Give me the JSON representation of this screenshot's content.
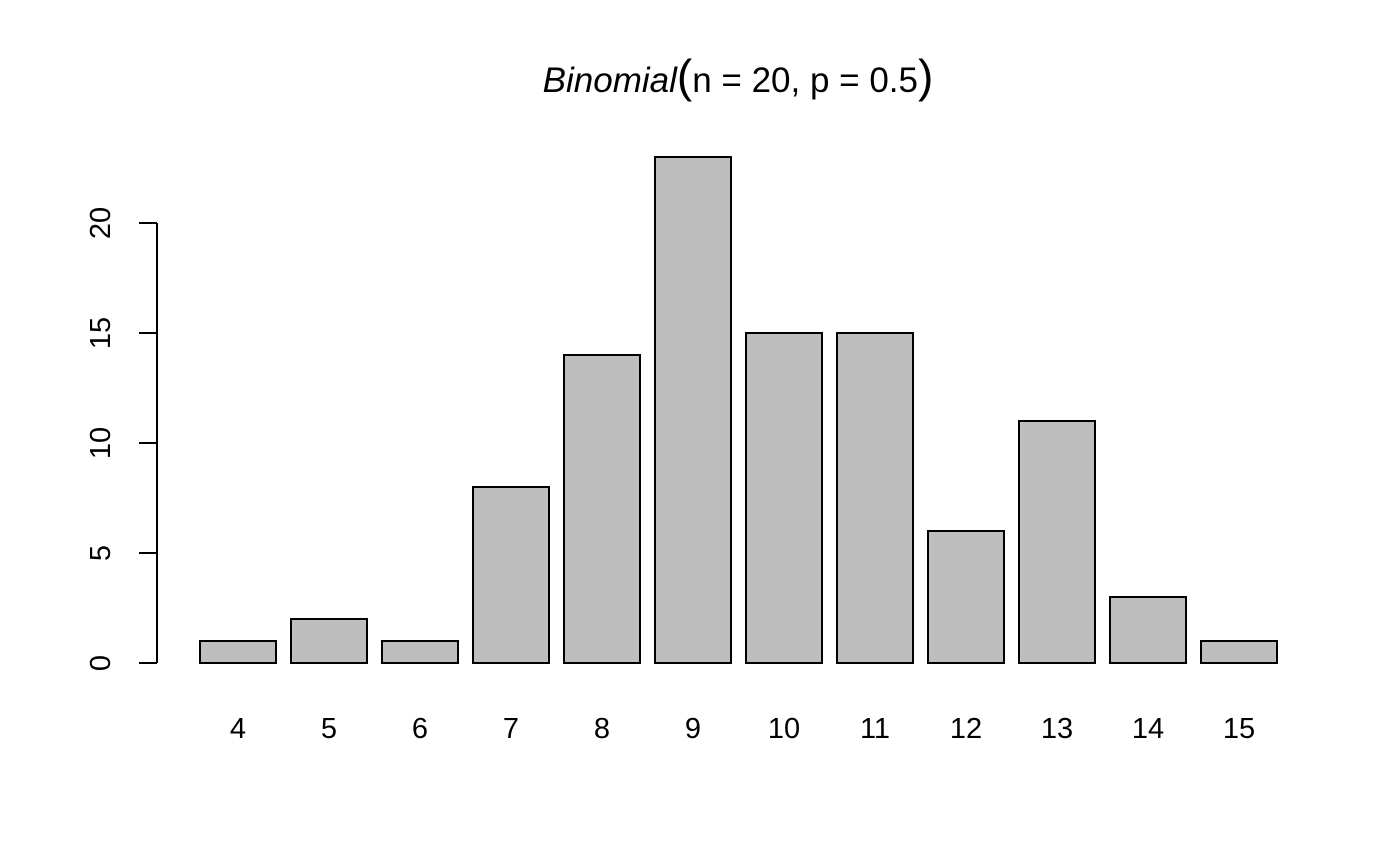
{
  "chart_data": {
    "type": "bar",
    "title": {
      "name": "Binomial",
      "open": "(",
      "params": "n = 20, p = 0.5",
      "close": ")"
    },
    "xlabel": "",
    "ylabel": "",
    "categories": [
      "4",
      "5",
      "6",
      "7",
      "8",
      "9",
      "10",
      "11",
      "12",
      "13",
      "14",
      "15"
    ],
    "values": [
      1,
      2,
      1,
      8,
      14,
      23,
      15,
      15,
      6,
      11,
      3,
      1
    ],
    "y_ticks": [
      0,
      5,
      10,
      15,
      20
    ],
    "ylim": [
      0,
      23
    ],
    "grid": false,
    "legend": "none",
    "colors": {
      "bar_fill": "#bebebe",
      "bar_stroke": "#000000",
      "axis": "#000000",
      "text": "#000000"
    }
  }
}
